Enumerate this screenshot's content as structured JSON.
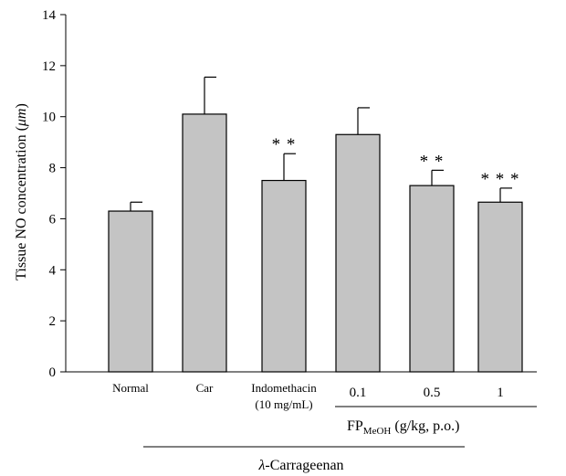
{
  "chart_data": {
    "type": "bar",
    "categories": [
      "Normal",
      "Car",
      "Indomethacin",
      "0.1",
      "0.5",
      "1"
    ],
    "category_sublabels": [
      "",
      "",
      "(10 mg/mL)",
      "",
      "",
      ""
    ],
    "values": [
      6.3,
      10.1,
      7.5,
      9.3,
      7.3,
      6.65
    ],
    "errors": [
      0.35,
      1.45,
      1.05,
      1.05,
      0.6,
      0.55
    ],
    "significance": [
      "",
      "",
      "**",
      "",
      "**",
      "***"
    ],
    "ylabel": "Tissue NO concentration (μm)",
    "ylabel_parts": {
      "pre": "Tissue NO concentration (",
      "unit": "μm",
      "post": ")"
    },
    "ylim": [
      0,
      14
    ],
    "yticks": [
      "0",
      "2",
      "4",
      "6",
      "8",
      "10",
      "12",
      "14"
    ],
    "group_fp": {
      "main": "FP",
      "sub": "MeOH",
      "rest": " (g/kg, p.o.)"
    },
    "group_carrageenan": {
      "lambda": "λ",
      "rest": "-Carrageenan"
    },
    "colors": {
      "bar_fill": "#c4c4c4",
      "bar_stroke": "#000000",
      "axis": "#000000"
    },
    "grid": false
  }
}
